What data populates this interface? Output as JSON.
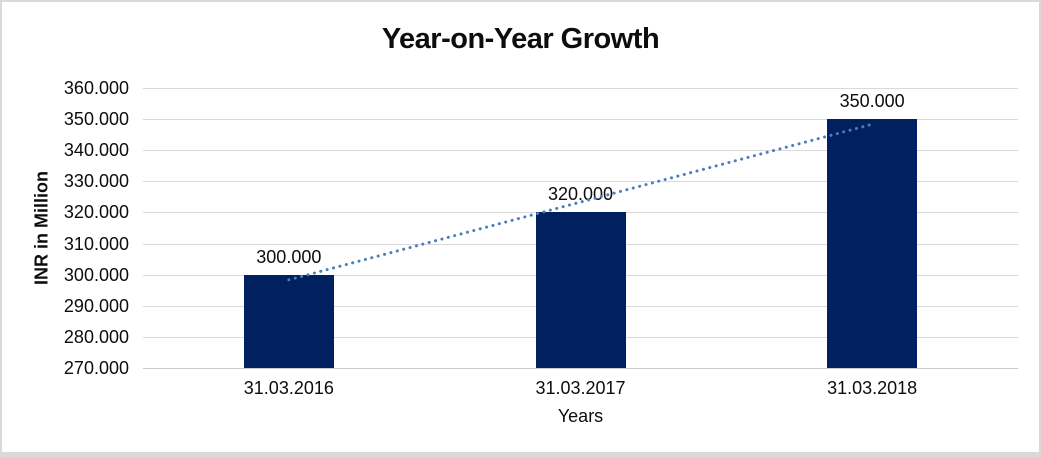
{
  "chart_data": {
    "type": "bar",
    "title": "Year-on-Year Growth",
    "xlabel": "Years",
    "ylabel": "INR in Million",
    "categories": [
      "31.03.2016",
      "31.03.2017",
      "31.03.2018"
    ],
    "values": [
      300000,
      320000,
      350000
    ],
    "data_labels": [
      "300.000",
      "320.000",
      "350.000"
    ],
    "ylim": [
      270000,
      360000
    ],
    "ytick_step": 10000,
    "ytick_labels": [
      "270.000",
      "280.000",
      "290.000",
      "300.000",
      "310.000",
      "320.000",
      "330.000",
      "340.000",
      "350.000",
      "360.000"
    ],
    "grid": "horizontal",
    "legend": "none",
    "trendline": {
      "type": "linear",
      "style": "dotted"
    },
    "colors": {
      "bar": "#002060",
      "trendline": "#4a7ebb",
      "gridline": "#d9d9d9",
      "axis_line": "#cbcbcb",
      "text": "#0d0d0d",
      "frame_border": "#d9d9d9",
      "background": "#ffffff"
    }
  }
}
